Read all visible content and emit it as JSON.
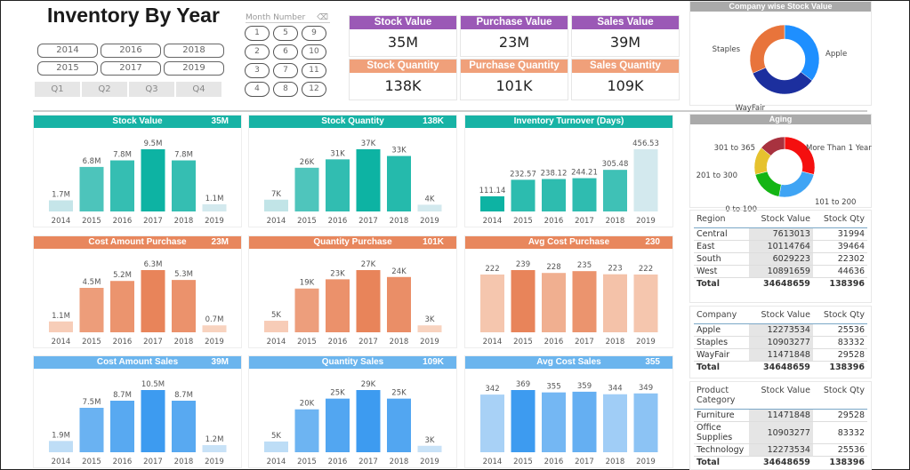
{
  "title": "Inventory By Year",
  "years": [
    "2014",
    "2015",
    "2016",
    "2017",
    "2018",
    "2019"
  ],
  "quarters": [
    "Q1",
    "Q2",
    "Q3",
    "Q4"
  ],
  "month_filter": {
    "label": "Month Number",
    "eraser_icon": "eraser-icon",
    "months": [
      "1",
      "2",
      "3",
      "4",
      "5",
      "6",
      "7",
      "8",
      "9",
      "10",
      "11",
      "12"
    ]
  },
  "kpis": [
    {
      "label": "Stock Value",
      "value": "35M",
      "color": "#9b59b6"
    },
    {
      "label": "Purchase Value",
      "value": "23M",
      "color": "#9b59b6"
    },
    {
      "label": "Sales Value",
      "value": "39M",
      "color": "#9b59b6"
    },
    {
      "label": "Stock Quantity",
      "value": "138K",
      "color": "#f0a07a"
    },
    {
      "label": "Purchase Quantity",
      "value": "101K",
      "color": "#f0a07a"
    },
    {
      "label": "Sales Quantity",
      "value": "109K",
      "color": "#f0a07a"
    }
  ],
  "chart_data": [
    {
      "type": "bar",
      "title": "Stock Value",
      "total": "35M",
      "header_color": "#17b3a5",
      "light": "#d3e9ee",
      "dark": "#0db3a3",
      "categories": [
        "2014",
        "2015",
        "2016",
        "2017",
        "2018",
        "2019"
      ],
      "values": [
        1.7,
        6.8,
        7.8,
        9.5,
        7.8,
        1.1
      ],
      "labels": [
        "1.7M",
        "6.8M",
        "7.8M",
        "9.5M",
        "7.8M",
        "1.1M"
      ]
    },
    {
      "type": "bar",
      "title": "Stock Quantity",
      "total": "138K",
      "header_color": "#17b3a5",
      "light": "#d3e9ee",
      "dark": "#0db3a3",
      "categories": [
        "2014",
        "2015",
        "2016",
        "2017",
        "2018",
        "2019"
      ],
      "values": [
        7,
        26,
        31,
        37,
        33,
        4
      ],
      "labels": [
        "7K",
        "26K",
        "31K",
        "37K",
        "33K",
        "4K"
      ]
    },
    {
      "type": "bar",
      "title": "Inventory Turnover (Days)",
      "total": "",
      "header_color": "#17b3a5",
      "light": "#d3e9ee",
      "dark": "#0db3a3",
      "categories": [
        "2014",
        "2015",
        "2016",
        "2017",
        "2018",
        "2019"
      ],
      "values": [
        111.14,
        232.57,
        238.12,
        244.21,
        305.48,
        456.53
      ],
      "labels": [
        "111.14",
        "232.57",
        "238.12",
        "244.21",
        "305.48",
        "456.53"
      ],
      "invert": true
    },
    {
      "type": "bar",
      "title": "Cost Amount Purchase",
      "total": "23M",
      "header_color": "#e8875d",
      "light": "#f8d3bf",
      "dark": "#e8845a",
      "categories": [
        "2014",
        "2015",
        "2016",
        "2017",
        "2018",
        "2019"
      ],
      "values": [
        1.1,
        4.5,
        5.2,
        6.3,
        5.3,
        0.7
      ],
      "labels": [
        "1.1M",
        "4.5M",
        "5.2M",
        "6.3M",
        "5.3M",
        "0.7M"
      ]
    },
    {
      "type": "bar",
      "title": "Quantity Purchase",
      "total": "101K",
      "header_color": "#e8875d",
      "light": "#f8d3bf",
      "dark": "#e8845a",
      "categories": [
        "2014",
        "2015",
        "2016",
        "2017",
        "2018",
        "2019"
      ],
      "values": [
        5,
        19,
        23,
        27,
        24,
        3
      ],
      "labels": [
        "5K",
        "19K",
        "23K",
        "27K",
        "24K",
        "3K"
      ]
    },
    {
      "type": "bar",
      "title": "Avg Cost Purchase",
      "total": "230",
      "header_color": "#e8875d",
      "light": "#f5c6ae",
      "dark": "#e8845a",
      "categories": [
        "2014",
        "2015",
        "2016",
        "2017",
        "2018",
        "2019"
      ],
      "values": [
        222,
        239,
        228,
        235,
        223,
        222
      ],
      "labels": [
        "222",
        "239",
        "228",
        "235",
        "223",
        "222"
      ]
    },
    {
      "type": "bar",
      "title": "Cost Amount Sales",
      "total": "39M",
      "header_color": "#6bb5ee",
      "light": "#c8e2f7",
      "dark": "#3d9bf0",
      "categories": [
        "2014",
        "2015",
        "2016",
        "2017",
        "2018",
        "2019"
      ],
      "values": [
        1.9,
        7.5,
        8.7,
        10.5,
        8.7,
        1.2
      ],
      "labels": [
        "1.9M",
        "7.5M",
        "8.7M",
        "10.5M",
        "8.7M",
        "1.2M"
      ]
    },
    {
      "type": "bar",
      "title": "Quantity Sales",
      "total": "109K",
      "header_color": "#6bb5ee",
      "light": "#c8e2f7",
      "dark": "#3d9bf0",
      "categories": [
        "2014",
        "2015",
        "2016",
        "2017",
        "2018",
        "2019"
      ],
      "values": [
        5,
        20,
        25,
        29,
        25,
        3
      ],
      "labels": [
        "5K",
        "20K",
        "25K",
        "29K",
        "25K",
        "3K"
      ]
    },
    {
      "type": "bar",
      "title": "Avg Cost Sales",
      "total": "355",
      "header_color": "#6bb5ee",
      "light": "#a8d1f6",
      "dark": "#3d9bf0",
      "categories": [
        "2014",
        "2015",
        "2016",
        "2017",
        "2018",
        "2019"
      ],
      "values": [
        342,
        369,
        355,
        359,
        344,
        349
      ],
      "labels": [
        "342",
        "369",
        "355",
        "359",
        "344",
        "349"
      ]
    },
    {
      "type": "pie",
      "title": "Company wise Stock Value",
      "slices": [
        {
          "name": "Apple",
          "value": 12273534,
          "color": "#1e8fff"
        },
        {
          "name": "WayFair",
          "value": 11471848,
          "color": "#1c2f9e"
        },
        {
          "name": "Staples",
          "value": 10903277,
          "color": "#e8743b"
        }
      ]
    },
    {
      "type": "pie",
      "title": "Aging",
      "slices": [
        {
          "name": "More Than 1 Year",
          "value": 29,
          "color": "#f50f0f"
        },
        {
          "name": "101 to 200",
          "value": 24,
          "color": "#3fa4f4"
        },
        {
          "name": "0 to 100",
          "value": 18,
          "color": "#14b514"
        },
        {
          "name": "201 to 300",
          "value": 15,
          "color": "#e6c22e"
        },
        {
          "name": "301 to 365",
          "value": 14,
          "color": "#a8323f"
        }
      ]
    }
  ],
  "tables": [
    {
      "headers": [
        "Region",
        "Stock Value",
        "Stock Qty"
      ],
      "rows": [
        [
          "Central",
          "7613013",
          "31994"
        ],
        [
          "East",
          "10114764",
          "39464"
        ],
        [
          "South",
          "6029223",
          "22302"
        ],
        [
          "West",
          "10891659",
          "44636"
        ]
      ],
      "total": [
        "Total",
        "34648659",
        "138396"
      ]
    },
    {
      "headers": [
        "Company",
        "Stock Value",
        "Stock Qty"
      ],
      "rows": [
        [
          "Apple",
          "12273534",
          "25536"
        ],
        [
          "Staples",
          "10903277",
          "83332"
        ],
        [
          "WayFair",
          "11471848",
          "29528"
        ]
      ],
      "total": [
        "Total",
        "34648659",
        "138396"
      ]
    },
    {
      "headers": [
        "Product Category",
        "Stock Value",
        "Stock Qty"
      ],
      "rows": [
        [
          "Furniture",
          "11471848",
          "29528"
        ],
        [
          "Office Supplies",
          "10903277",
          "83332"
        ],
        [
          "Technology",
          "12273534",
          "25536"
        ]
      ],
      "total": [
        "Total",
        "34648659",
        "138396"
      ]
    }
  ]
}
